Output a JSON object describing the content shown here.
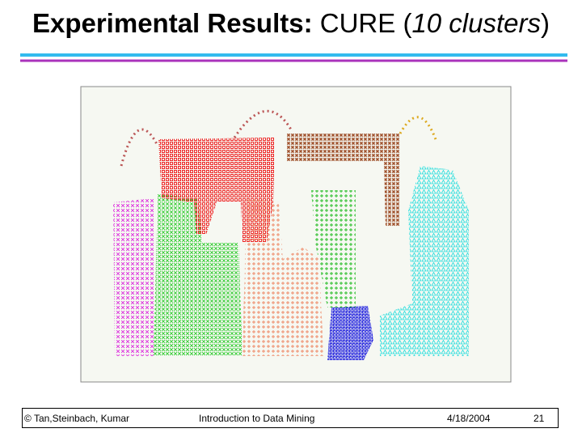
{
  "header": {
    "title": {
      "bold": "Experimental Results:",
      "plain": "CURE (",
      "italic": "10 clusters",
      "close": ")"
    }
  },
  "footer": {
    "authors": "© Tan,Steinbach, Kumar",
    "course": "Introduction to Data Mining",
    "date": "4/18/2004",
    "page": "21"
  }
}
